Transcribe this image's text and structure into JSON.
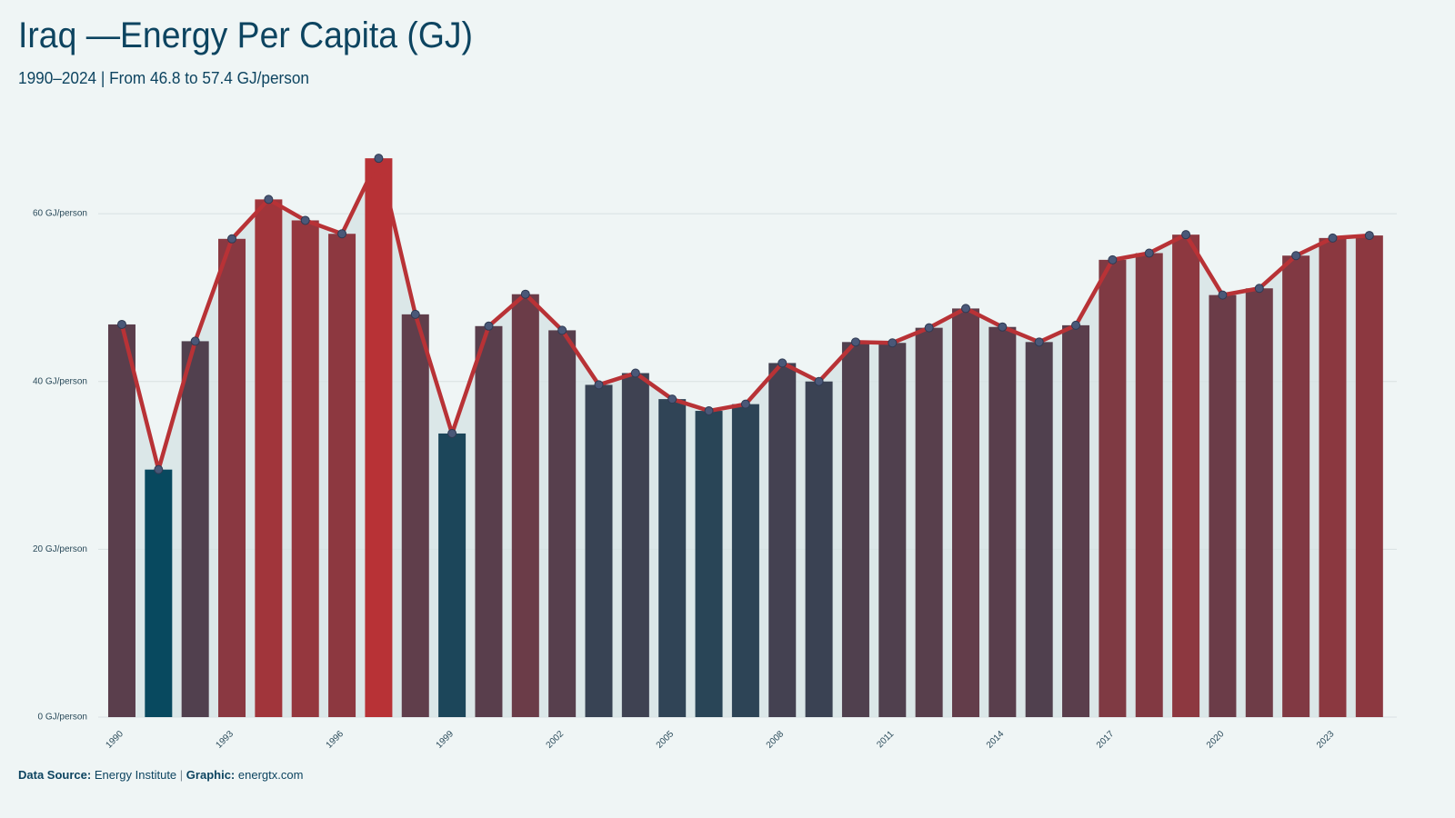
{
  "chart_data": {
    "type": "bar-line",
    "title": "Iraq —Energy Per Capita (GJ)",
    "subtitle": "1990–2024 | From 46.8 to 57.4 GJ/person",
    "categories": [
      "1990",
      null,
      null,
      "1993",
      null,
      null,
      "1996",
      null,
      null,
      "1999",
      null,
      null,
      "2002",
      null,
      null,
      "2005",
      null,
      null,
      "2008",
      null,
      null,
      "2011",
      null,
      null,
      "2014",
      null,
      null,
      "2017",
      null,
      null,
      "2020",
      null,
      null,
      "2023",
      null
    ],
    "values": [
      46.8,
      29.5,
      44.8,
      57.0,
      61.7,
      59.2,
      57.6,
      66.6,
      48.0,
      33.8,
      46.6,
      50.4,
      46.1,
      39.6,
      41.0,
      37.9,
      36.5,
      37.3,
      42.2,
      40.0,
      44.7,
      44.6,
      46.4,
      48.7,
      46.5,
      44.7,
      46.7,
      54.5,
      55.3,
      57.5,
      50.3,
      51.1,
      55.0,
      57.1,
      57.4
    ],
    "color_low": "#08495f",
    "color_high": "#b83236",
    "line_color": "#b83236",
    "marker_color": "#4a5878",
    "area_color": "#d6e3e5",
    "ylim": [
      0,
      69
    ],
    "yticks": [
      {
        "value": 0,
        "label": "0 GJ/person"
      },
      {
        "value": 20,
        "label": "20 GJ/person"
      },
      {
        "value": 40,
        "label": "40 GJ/person"
      },
      {
        "value": 60,
        "label": "60 GJ/person"
      }
    ],
    "grid": true
  },
  "footer": {
    "source_label": "Data Source:",
    "source": "Energy Institute",
    "separator": "|",
    "graphic_label": "Graphic:",
    "graphic": "energtx.com"
  }
}
